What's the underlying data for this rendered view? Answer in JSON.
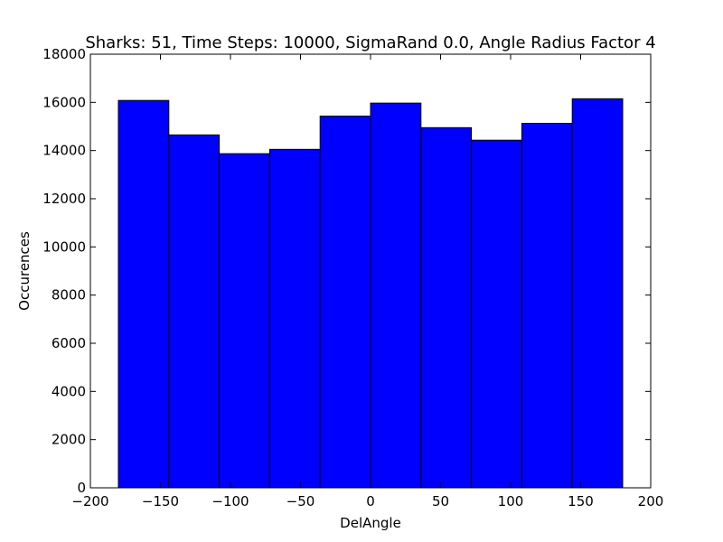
{
  "chart_data": {
    "type": "bar",
    "title": "Sharks: 51, Time Steps: 10000, SigmaRand 0.0, Angle Radius Factor 4",
    "xlabel": "DelAngle",
    "ylabel": "Occurences",
    "xlim": [
      -200,
      200
    ],
    "ylim": [
      0,
      18000
    ],
    "x_ticks": [
      -200,
      -150,
      -100,
      -50,
      0,
      50,
      100,
      150,
      200
    ],
    "x_tick_labels": [
      "−200",
      "−150",
      "−100",
      "−50",
      "0",
      "50",
      "100",
      "150",
      "200"
    ],
    "y_ticks": [
      0,
      2000,
      4000,
      6000,
      8000,
      10000,
      12000,
      14000,
      16000,
      18000
    ],
    "y_tick_labels": [
      "0",
      "2000",
      "4000",
      "6000",
      "8000",
      "10000",
      "12000",
      "14000",
      "16000",
      "18000"
    ],
    "bin_edges": [
      -180,
      -144,
      -108,
      -72,
      -36,
      0,
      36,
      72,
      108,
      144,
      180
    ],
    "values": [
      16080,
      14650,
      13870,
      14050,
      15430,
      15970,
      14950,
      14430,
      15130,
      16150
    ],
    "grid": false,
    "bar_color": "#0000ff",
    "edge_color": "#000000"
  }
}
